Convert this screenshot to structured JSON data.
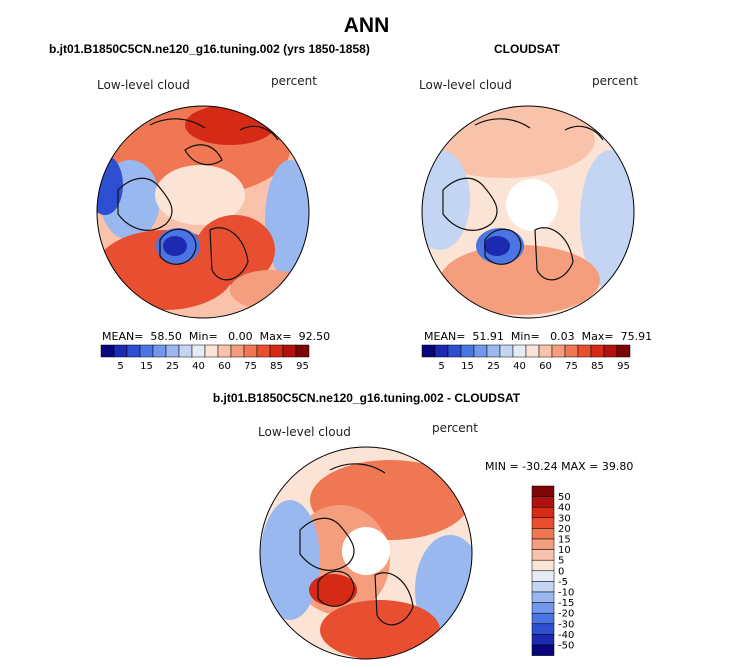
{
  "title": "ANN",
  "panels": {
    "model": {
      "title": "b.jt01.B1850C5CN.ne120_g16.tuning.002 (yrs 1850-1858)",
      "field": "Low-level cloud",
      "units": "percent",
      "stats": {
        "mean_label": "MEAN=",
        "mean": "58.50",
        "min_label": "Min=",
        "min": "0.00",
        "max_label": "Max=",
        "max": "92.50"
      }
    },
    "obs": {
      "title": "CLOUDSAT",
      "field": "Low-level cloud",
      "units": "percent",
      "stats": {
        "mean_label": "MEAN=",
        "mean": "51.91",
        "min_label": "Min=",
        "min": "0.03",
        "max_label": "Max=",
        "max": "75.91"
      }
    },
    "diff": {
      "title": "b.jt01.B1850C5CN.ne120_g16.tuning.002 - CLOUDSAT",
      "field": "Low-level cloud",
      "units": "percent",
      "stats_text": "MIN = -30.24  MAX =  39.80"
    }
  },
  "colorbar_abs": {
    "labels": [
      "5",
      "15",
      "25",
      "40",
      "60",
      "75",
      "85",
      "95"
    ],
    "colors": [
      "#08067a",
      "#1c2ab2",
      "#2d4fd0",
      "#4b75e3",
      "#7298ec",
      "#9ab8f0",
      "#c3d5f3",
      "#e5ecf6",
      "#fbe3d6",
      "#f8c3aa",
      "#f49e7e",
      "#ef7753",
      "#e84f31",
      "#d52a16",
      "#b0120d",
      "#7c0606"
    ]
  },
  "colorbar_diff": {
    "labels": [
      "50",
      "40",
      "30",
      "20",
      "15",
      "10",
      "5",
      "0",
      "-5",
      "-10",
      "-15",
      "-20",
      "-30",
      "-40",
      "-50"
    ],
    "colors": [
      "#7c0606",
      "#b0120d",
      "#d52a16",
      "#e84f31",
      "#ef7753",
      "#f49e7e",
      "#f8c3aa",
      "#fbe3d6",
      "#e5ecf6",
      "#c3d5f3",
      "#9ab8f0",
      "#7298ec",
      "#4b75e3",
      "#2d4fd0",
      "#1c2ab2",
      "#08067a"
    ]
  },
  "colors": {
    "warm": "#e9603d",
    "cool": "#6f95e6",
    "neutral": "#f2e9e6",
    "coast": "#111111"
  }
}
